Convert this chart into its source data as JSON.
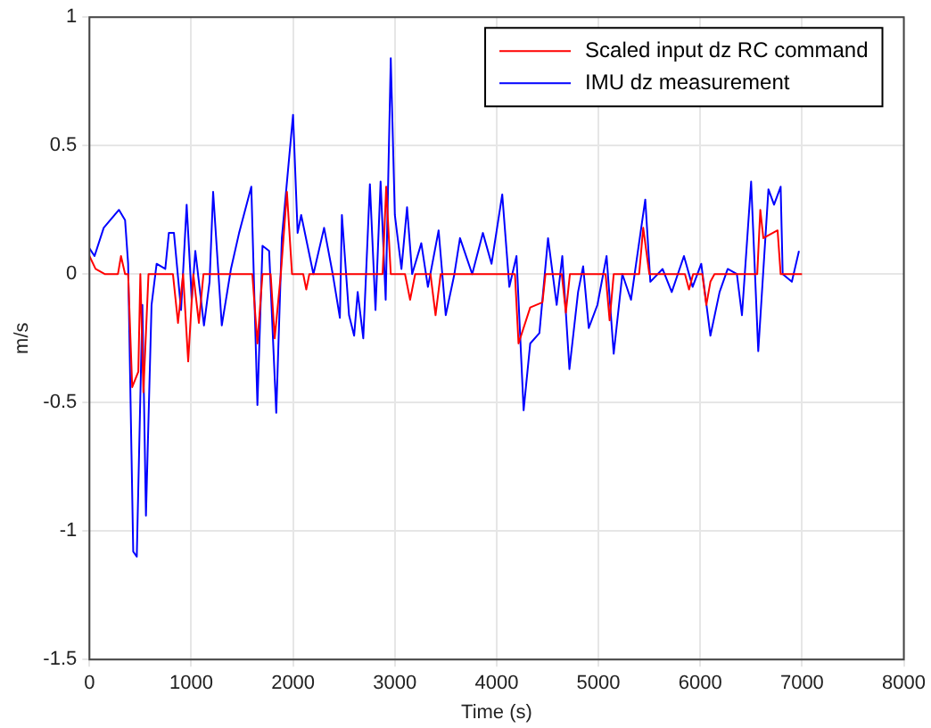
{
  "chart_data": {
    "type": "line",
    "xlabel": "Time (s)",
    "ylabel": "m/s",
    "xlim": [
      0,
      8000
    ],
    "xticks": [
      0,
      1000,
      2000,
      3000,
      4000,
      5000,
      6000,
      7000,
      8000
    ],
    "ylim": [
      -1.5,
      1
    ],
    "yticks": [
      -1.5,
      -1,
      -0.5,
      0,
      0.5,
      1
    ],
    "grid": true,
    "legend": "top right",
    "marker": "none",
    "line_style": "solid",
    "series": [
      {
        "name": "Scaled input dz RC command",
        "color": "#ff0000",
        "x": [
          0,
          60,
          150,
          280,
          310,
          350,
          380,
          420,
          480,
          500,
          530,
          580,
          820,
          870,
          920,
          970,
          1020,
          1075,
          1120,
          1180,
          1600,
          1650,
          1700,
          1780,
          1820,
          1880,
          1940,
          1990,
          2100,
          2130,
          2160,
          2880,
          2915,
          2960,
          3100,
          3150,
          3200,
          3350,
          3400,
          3450,
          4180,
          4215,
          4330,
          4450,
          4480,
          4640,
          4680,
          4720,
          5070,
          5110,
          5150,
          5400,
          5440,
          5500,
          5850,
          5890,
          5930,
          6020,
          6060,
          6100,
          6140,
          6560,
          6590,
          6620,
          6760,
          6790,
          7000
        ],
        "values": [
          0.07,
          0.02,
          0,
          0,
          0.07,
          0,
          0,
          -0.44,
          -0.38,
          0,
          -0.46,
          0,
          0,
          -0.19,
          0,
          -0.34,
          0,
          -0.19,
          0,
          0,
          0,
          -0.27,
          0,
          0,
          -0.25,
          0,
          0.32,
          0,
          0,
          -0.06,
          0,
          0,
          0.34,
          0,
          0,
          -0.1,
          0,
          0,
          -0.16,
          0,
          0,
          -0.27,
          -0.13,
          -0.11,
          0,
          0,
          -0.15,
          0,
          0,
          -0.18,
          0,
          0,
          0.18,
          0,
          0,
          -0.06,
          0,
          0,
          -0.12,
          -0.03,
          0,
          0,
          0.25,
          0.14,
          0.17,
          0,
          0
        ]
      },
      {
        "name": "IMU dz measurement",
        "color": "#0000ff",
        "x": [
          0,
          50,
          140,
          290,
          350,
          380,
          430,
          465,
          520,
          555,
          610,
          660,
          745,
          780,
          830,
          900,
          955,
          1005,
          1040,
          1125,
          1180,
          1215,
          1300,
          1390,
          1470,
          1590,
          1650,
          1700,
          1765,
          1835,
          1890,
          2000,
          2045,
          2080,
          2200,
          2305,
          2390,
          2460,
          2480,
          2550,
          2600,
          2635,
          2690,
          2755,
          2810,
          2860,
          2910,
          2960,
          3000,
          3065,
          3120,
          3170,
          3260,
          3325,
          3430,
          3500,
          3585,
          3640,
          3760,
          3865,
          3950,
          4055,
          4125,
          4195,
          4265,
          4330,
          4420,
          4505,
          4590,
          4645,
          4715,
          4800,
          4850,
          4905,
          4990,
          5080,
          5150,
          5235,
          5320,
          5370,
          5460,
          5510,
          5630,
          5720,
          5840,
          5925,
          6010,
          6100,
          6190,
          6270,
          6360,
          6410,
          6500,
          6570,
          6670,
          6725,
          6790,
          6810,
          6900,
          6970
        ],
        "values": [
          0.1,
          0.07,
          0.18,
          0.25,
          0.21,
          0.04,
          -1.08,
          -1.1,
          -0.12,
          -0.94,
          -0.12,
          0.04,
          0.02,
          0.16,
          0.16,
          -0.14,
          0.27,
          -0.1,
          0.09,
          -0.2,
          -0.03,
          0.32,
          -0.2,
          0.02,
          0.16,
          0.34,
          -0.51,
          0.11,
          0.09,
          -0.54,
          0.14,
          0.62,
          0.16,
          0.23,
          0,
          0.18,
          0,
          -0.17,
          0.23,
          -0.16,
          -0.24,
          -0.07,
          -0.25,
          0.35,
          -0.14,
          0.36,
          -0.1,
          0.84,
          0.23,
          0.02,
          0.26,
          0,
          0.12,
          -0.05,
          0.17,
          -0.16,
          0,
          0.14,
          0,
          0.16,
          0.04,
          0.31,
          -0.05,
          0.07,
          -0.53,
          -0.27,
          -0.23,
          0.14,
          -0.12,
          0.07,
          -0.37,
          -0.07,
          0.03,
          -0.21,
          -0.12,
          0.07,
          -0.31,
          0,
          -0.1,
          0.04,
          0.29,
          -0.03,
          0.02,
          -0.07,
          0.07,
          -0.05,
          0.04,
          -0.24,
          -0.07,
          0.02,
          0,
          -0.16,
          0.36,
          -0.3,
          0.33,
          0.27,
          0.34,
          0,
          -0.03,
          0.09
        ]
      }
    ]
  }
}
